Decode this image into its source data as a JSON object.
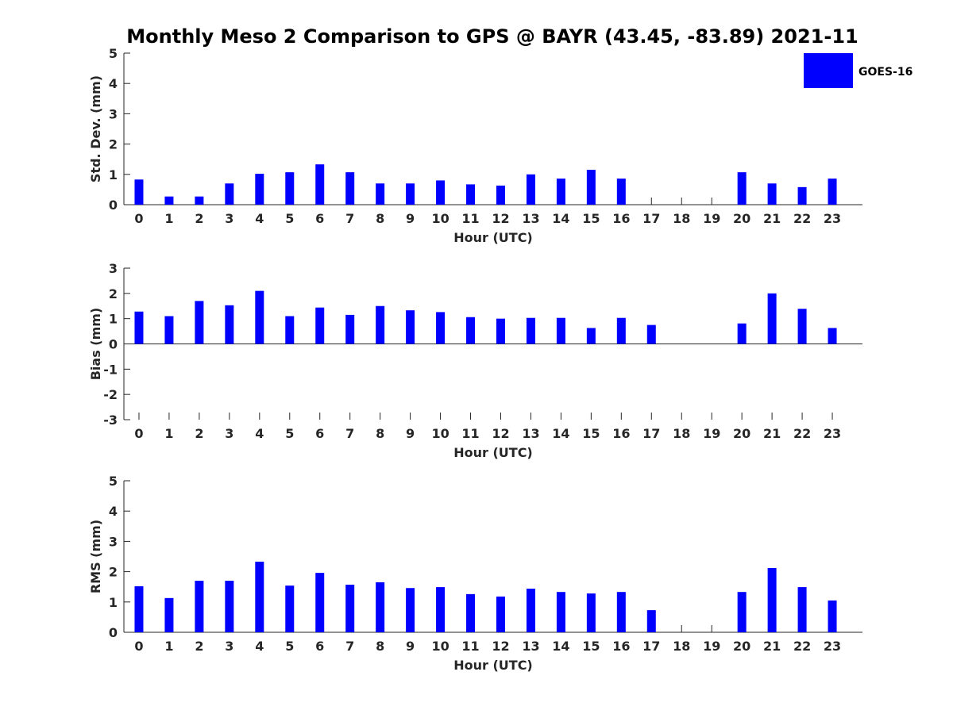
{
  "figure": {
    "title": "Monthly Meso 2 Comparison to GPS @ BAYR (43.45, -83.89) 2021-11",
    "legend": {
      "label": "GOES-16",
      "color": "#0000ff",
      "placement": "top-right"
    }
  },
  "chart_data": [
    {
      "type": "bar",
      "ylabel": "Std. Dev. (mm)",
      "xlabel": "Hour (UTC)",
      "categories": [
        "0",
        "1",
        "2",
        "3",
        "4",
        "5",
        "6",
        "7",
        "8",
        "9",
        "10",
        "11",
        "12",
        "13",
        "14",
        "15",
        "16",
        "17",
        "18",
        "19",
        "20",
        "21",
        "22",
        "23"
      ],
      "yticks": [
        "0",
        "1",
        "2",
        "3",
        "4",
        "5"
      ],
      "ylim": [
        0,
        5
      ],
      "grid": false,
      "series": [
        {
          "name": "GOES-16",
          "color": "#0000ff",
          "values": [
            0.83,
            0.27,
            0.27,
            0.7,
            1.02,
            1.07,
            1.33,
            1.07,
            0.7,
            0.7,
            0.8,
            0.67,
            0.63,
            1.0,
            0.86,
            1.15,
            0.86,
            null,
            null,
            null,
            1.07,
            0.7,
            0.58,
            0.86
          ]
        }
      ]
    },
    {
      "type": "bar",
      "ylabel": "Bias (mm)",
      "xlabel": "Hour (UTC)",
      "categories": [
        "0",
        "1",
        "2",
        "3",
        "4",
        "5",
        "6",
        "7",
        "8",
        "9",
        "10",
        "11",
        "12",
        "13",
        "14",
        "15",
        "16",
        "17",
        "18",
        "19",
        "20",
        "21",
        "22",
        "23"
      ],
      "yticks": [
        "-3",
        "-2",
        "-1",
        "0",
        "1",
        "2",
        "3"
      ],
      "ylim": [
        -3,
        3
      ],
      "grid": false,
      "series": [
        {
          "name": "GOES-16",
          "color": "#0000ff",
          "values": [
            1.28,
            1.1,
            1.7,
            1.53,
            2.1,
            1.1,
            1.44,
            1.15,
            1.5,
            1.33,
            1.26,
            1.06,
            1.0,
            1.03,
            1.03,
            0.63,
            1.03,
            0.75,
            null,
            null,
            0.81,
            2.0,
            1.39,
            0.63
          ]
        }
      ]
    },
    {
      "type": "bar",
      "ylabel": "RMS (mm)",
      "xlabel": "Hour (UTC)",
      "categories": [
        "0",
        "1",
        "2",
        "3",
        "4",
        "5",
        "6",
        "7",
        "8",
        "9",
        "10",
        "11",
        "12",
        "13",
        "14",
        "15",
        "16",
        "17",
        "18",
        "19",
        "20",
        "21",
        "22",
        "23"
      ],
      "yticks": [
        "0",
        "1",
        "2",
        "3",
        "4",
        "5"
      ],
      "ylim": [
        0,
        5
      ],
      "grid": false,
      "series": [
        {
          "name": "GOES-16",
          "color": "#0000ff",
          "values": [
            1.52,
            1.13,
            1.7,
            1.7,
            2.33,
            1.54,
            1.96,
            1.57,
            1.65,
            1.46,
            1.49,
            1.26,
            1.18,
            1.44,
            1.33,
            1.28,
            1.33,
            0.73,
            null,
            null,
            1.33,
            2.12,
            1.49,
            1.05
          ]
        }
      ]
    }
  ]
}
